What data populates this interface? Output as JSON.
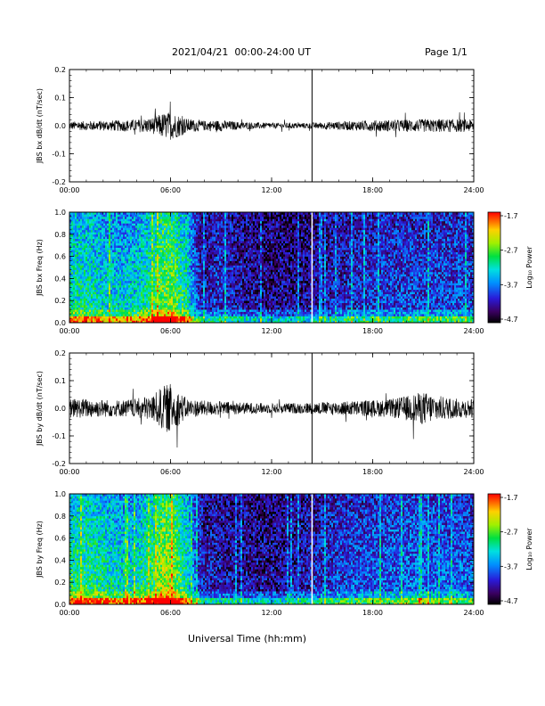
{
  "header": {
    "title": "2021/04/21  00:00-24:00 UT",
    "page": "Page 1/1"
  },
  "xaxis_title": "Universal Time (hh:mm)",
  "chart_data": [
    {
      "type": "line",
      "ylabel": "JBS bx dB/dt (nT/sec)",
      "xlim": [
        0,
        24
      ],
      "ylim": [
        -0.2,
        0.2
      ],
      "x_ticks": [
        "00:00",
        "06:00",
        "12:00",
        "18:00",
        "24:00"
      ],
      "y_ticks": [
        "-0.2",
        "-0.1",
        "0.0",
        "0.1",
        "0.2"
      ],
      "gap_hour": 14.4,
      "amplitude_envelope": {
        "hours": [
          0,
          2,
          4,
          5,
          5.5,
          6,
          6.5,
          7,
          8,
          9,
          10,
          12,
          14,
          16,
          18,
          20,
          22,
          24
        ],
        "amp": [
          0.015,
          0.018,
          0.022,
          0.03,
          0.045,
          0.05,
          0.04,
          0.025,
          0.018,
          0.02,
          0.014,
          0.01,
          0.01,
          0.015,
          0.02,
          0.022,
          0.024,
          0.022
        ]
      }
    },
    {
      "type": "heatmap",
      "ylabel": "JBS bx Freq (Hz)",
      "xlim": [
        0,
        24
      ],
      "ylim": [
        0.0,
        1.0
      ],
      "x_ticks": [
        "00:00",
        "06:00",
        "12:00",
        "18:00",
        "24:00"
      ],
      "y_ticks": [
        "0.0",
        "0.2",
        "0.4",
        "0.6",
        "0.8",
        "1.0"
      ],
      "colorbar": {
        "label": "Log₁₀ Power",
        "min": -4.7,
        "max": -1.7,
        "ticks": [
          "-1.7",
          "-2.7",
          "-3.7",
          "-4.7"
        ]
      },
      "activity_profile": {
        "hours": [
          0,
          1,
          2,
          3,
          4,
          5,
          5.5,
          6,
          6.5,
          7,
          7.5,
          8,
          9,
          10,
          12,
          14,
          16,
          18,
          20,
          22,
          24
        ],
        "level": [
          0.55,
          0.55,
          0.5,
          0.48,
          0.5,
          0.62,
          0.7,
          0.72,
          0.62,
          0.55,
          0.3,
          0.2,
          0.25,
          0.18,
          0.14,
          0.15,
          0.22,
          0.26,
          0.27,
          0.28,
          0.28
        ]
      }
    },
    {
      "type": "line",
      "ylabel": "JBS by dB/dt (nT/sec)",
      "xlim": [
        0,
        24
      ],
      "ylim": [
        -0.2,
        0.2
      ],
      "x_ticks": [
        "00:00",
        "06:00",
        "12:00",
        "18:00",
        "24:00"
      ],
      "y_ticks": [
        "-0.2",
        "-0.1",
        "0.0",
        "0.1",
        "0.2"
      ],
      "gap_hour": 14.4,
      "amplitude_envelope": {
        "hours": [
          0,
          1,
          2,
          3,
          4,
          5,
          5.5,
          6,
          6.5,
          7,
          8,
          10,
          12,
          14,
          16,
          18,
          19,
          20,
          21,
          22,
          23,
          24
        ],
        "amp": [
          0.035,
          0.035,
          0.032,
          0.03,
          0.035,
          0.05,
          0.08,
          0.09,
          0.06,
          0.035,
          0.028,
          0.022,
          0.018,
          0.02,
          0.025,
          0.03,
          0.032,
          0.045,
          0.06,
          0.045,
          0.035,
          0.035
        ]
      }
    },
    {
      "type": "heatmap",
      "ylabel": "JBS by Freq (Hz)",
      "xlim": [
        0,
        24
      ],
      "ylim": [
        0.0,
        1.0
      ],
      "x_ticks": [
        "00:00",
        "06:00",
        "12:00",
        "18:00",
        "24:00"
      ],
      "y_ticks": [
        "0.0",
        "0.2",
        "0.4",
        "0.6",
        "0.8",
        "1.0"
      ],
      "colorbar": {
        "label": "Log₁₀ Power",
        "min": -4.7,
        "max": -1.7,
        "ticks": [
          "-1.7",
          "-2.7",
          "-3.7",
          "-4.7"
        ]
      },
      "activity_profile": {
        "hours": [
          0,
          1,
          2,
          3,
          4,
          5,
          5.5,
          6,
          6.5,
          7,
          7.5,
          8,
          9,
          10,
          12,
          14,
          16,
          18,
          20,
          22,
          24
        ],
        "level": [
          0.6,
          0.6,
          0.55,
          0.5,
          0.52,
          0.65,
          0.78,
          0.78,
          0.65,
          0.55,
          0.3,
          0.2,
          0.2,
          0.18,
          0.15,
          0.2,
          0.27,
          0.3,
          0.33,
          0.33,
          0.3
        ]
      }
    }
  ]
}
